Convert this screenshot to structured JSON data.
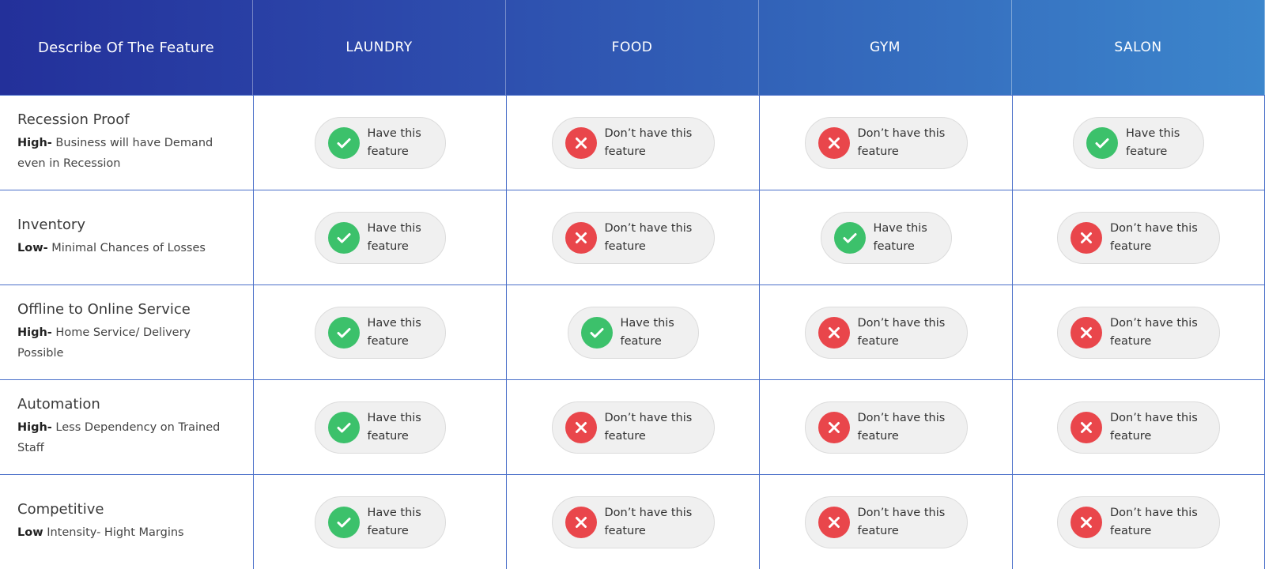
{
  "header": {
    "feature_col": "Describe Of The Feature",
    "columns": [
      "LAUNDRY",
      "FOOD",
      "GYM",
      "SALON"
    ]
  },
  "labels": {
    "yes": "Have this feature",
    "no": "Don’t have this feature"
  },
  "colors": {
    "header_gradient_start": "#23309a",
    "header_gradient_end": "#3c86cc",
    "check_green": "#3cc16b",
    "cross_red": "#e9464b",
    "grid_line": "#4a6fc9",
    "pill_bg": "#f0f0f0"
  },
  "rows": [
    {
      "title": "Recession Proof",
      "level": "High-",
      "desc": " Business will have Demand even in Recession",
      "values": [
        "yes",
        "no",
        "no",
        "yes"
      ]
    },
    {
      "title": "Inventory",
      "level": "Low-",
      "desc": " Minimal Chances of  Losses",
      "values": [
        "yes",
        "no",
        "yes",
        "no"
      ]
    },
    {
      "title": "Offline to Online Service",
      "level": "High-",
      "desc": " Home Service/ Delivery Possible",
      "values": [
        "yes",
        "yes",
        "no",
        "no"
      ]
    },
    {
      "title": "Automation",
      "level": "High-",
      "desc": " Less Dependency on Trained Staff",
      "values": [
        "yes",
        "no",
        "no",
        "no"
      ]
    },
    {
      "title": "Competitive",
      "level": "Low",
      "desc": " Intensity- Hight Margins",
      "values": [
        "yes",
        "no",
        "no",
        "no"
      ]
    }
  ]
}
